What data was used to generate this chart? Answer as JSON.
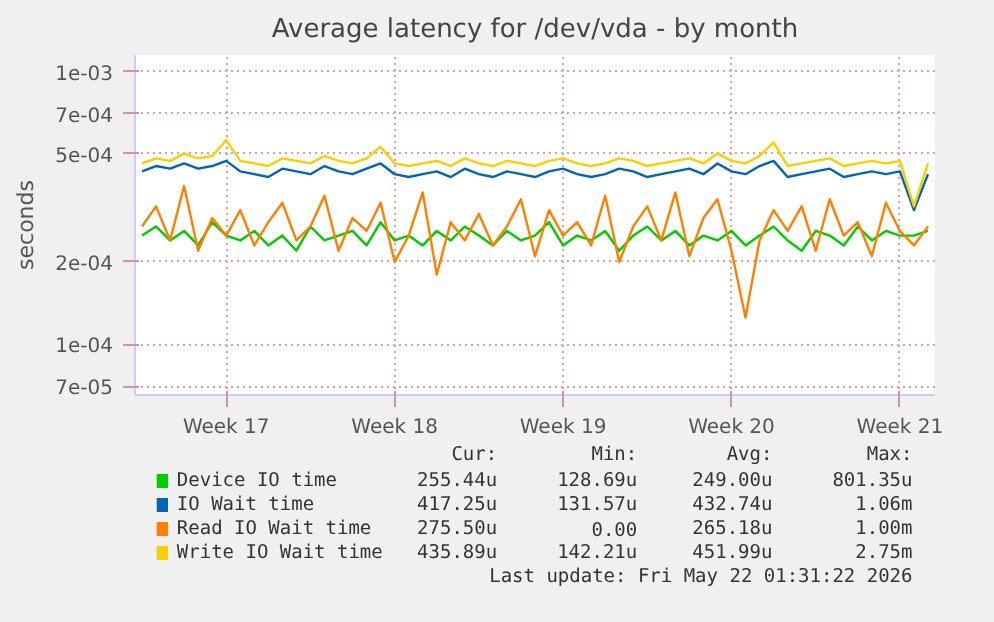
{
  "chart_data": {
    "type": "line",
    "title": "Average latency for /dev/vda - by month",
    "ylabel": "seconds",
    "log": "y",
    "grid": true,
    "legend": "bottom",
    "ylim": [
      6.5e-05,
      0.00115
    ],
    "yticks": [
      {
        "value": 7e-05,
        "label": "7e-05"
      },
      {
        "value": 0.0001,
        "label": "1e-04"
      },
      {
        "value": 0.0002,
        "label": "2e-04"
      },
      {
        "value": 0.0005,
        "label": "5e-04"
      },
      {
        "value": 0.0007,
        "label": "7e-04"
      },
      {
        "value": 0.001,
        "label": "1e-03"
      }
    ],
    "categories": [
      null,
      null,
      null,
      null,
      null,
      null,
      "Week 17",
      null,
      null,
      null,
      null,
      null,
      null,
      null,
      null,
      null,
      null,
      null,
      "Week 18",
      null,
      null,
      null,
      null,
      null,
      null,
      null,
      null,
      null,
      null,
      null,
      "Week 19",
      null,
      null,
      null,
      null,
      null,
      null,
      null,
      null,
      null,
      null,
      null,
      "Week 20",
      null,
      null,
      null,
      null,
      null,
      null,
      null,
      null,
      null,
      null,
      null,
      "Week 21",
      null,
      null
    ],
    "series": [
      {
        "name": "Device IO time",
        "color": "#00cc00",
        "values": [
          0.00025,
          0.00027,
          0.00024,
          0.00026,
          0.00023,
          0.00028,
          0.00025,
          0.00024,
          0.00026,
          0.00023,
          0.00025,
          0.00022,
          0.00027,
          0.00024,
          0.00025,
          0.00026,
          0.00023,
          0.00028,
          0.00024,
          0.00025,
          0.00023,
          0.00026,
          0.00024,
          0.00027,
          0.00025,
          0.00023,
          0.00026,
          0.00024,
          0.00025,
          0.00028,
          0.00023,
          0.00025,
          0.00024,
          0.00026,
          0.00022,
          0.00025,
          0.00027,
          0.00024,
          0.00026,
          0.00023,
          0.00025,
          0.00024,
          0.00026,
          0.00023,
          0.00025,
          0.00027,
          0.00024,
          0.00022,
          0.00026,
          0.00025,
          0.00023,
          0.00027,
          0.00024,
          0.00026,
          0.00025,
          0.00025,
          0.00026
        ]
      },
      {
        "name": "IO Wait time",
        "color": "#0066b3",
        "values": [
          0.00043,
          0.00045,
          0.00044,
          0.00046,
          0.00044,
          0.00045,
          0.00047,
          0.00043,
          0.00042,
          0.00041,
          0.00044,
          0.00043,
          0.00042,
          0.00045,
          0.00043,
          0.00042,
          0.00044,
          0.00046,
          0.00042,
          0.00041,
          0.00042,
          0.00043,
          0.00041,
          0.00044,
          0.00042,
          0.00041,
          0.00043,
          0.00042,
          0.00041,
          0.00043,
          0.00044,
          0.00042,
          0.00041,
          0.00042,
          0.00044,
          0.00043,
          0.00041,
          0.00042,
          0.00043,
          0.00044,
          0.00042,
          0.00046,
          0.00043,
          0.00042,
          0.00045,
          0.00047,
          0.00041,
          0.00042,
          0.00043,
          0.00044,
          0.00041,
          0.00042,
          0.00043,
          0.00042,
          0.00043,
          0.00031,
          0.00042
        ]
      },
      {
        "name": "Read IO Wait time",
        "color": "#ff8000",
        "values": [
          0.00027,
          0.00032,
          0.00024,
          0.00038,
          0.00022,
          0.00029,
          0.00025,
          0.00031,
          0.00023,
          0.00028,
          0.00033,
          0.00024,
          0.00027,
          0.00035,
          0.00022,
          0.00029,
          0.00026,
          0.00033,
          0.0002,
          0.00025,
          0.00036,
          0.00018,
          0.00028,
          0.00024,
          0.0003,
          0.00023,
          0.00027,
          0.00034,
          0.00021,
          0.00031,
          0.00025,
          0.00028,
          0.00023,
          0.00035,
          0.0002,
          0.00027,
          0.00032,
          0.00024,
          0.00036,
          0.00021,
          0.00029,
          0.00034,
          0.00022,
          0.000125,
          0.00024,
          0.00031,
          0.00026,
          0.00032,
          0.00022,
          0.00034,
          0.00025,
          0.00028,
          0.00021,
          0.00033,
          0.00026,
          0.00023,
          0.00027
        ]
      },
      {
        "name": "Write IO Wait time",
        "color": "#ffcc00",
        "values": [
          0.00046,
          0.00048,
          0.00047,
          0.0005,
          0.00048,
          0.00049,
          0.00056,
          0.00047,
          0.00046,
          0.00045,
          0.00048,
          0.00047,
          0.00046,
          0.00049,
          0.00047,
          0.00046,
          0.00048,
          0.00053,
          0.00046,
          0.00045,
          0.00046,
          0.00047,
          0.00045,
          0.00048,
          0.00046,
          0.00045,
          0.00047,
          0.00046,
          0.00045,
          0.00047,
          0.00048,
          0.00046,
          0.00045,
          0.00046,
          0.00048,
          0.00047,
          0.00045,
          0.00046,
          0.00047,
          0.00048,
          0.00046,
          0.0005,
          0.00047,
          0.00046,
          0.00049,
          0.00055,
          0.00045,
          0.00046,
          0.00047,
          0.00048,
          0.00045,
          0.00046,
          0.00047,
          0.00046,
          0.00047,
          0.00032,
          0.00046
        ]
      }
    ],
    "annotations": [
      "Cur:",
      "Min:",
      "Avg:",
      "Max:",
      "255.44u",
      "128.69u",
      "249.00u",
      "801.35u",
      "417.25u",
      "131.57u",
      "432.74u",
      "1.06m",
      "275.50u",
      "0.00",
      "265.18u",
      "1.00m",
      "435.89u",
      "142.21u",
      "451.99u",
      "2.75m",
      "Last update: Fri May 22 01:31:22 2026"
    ]
  }
}
